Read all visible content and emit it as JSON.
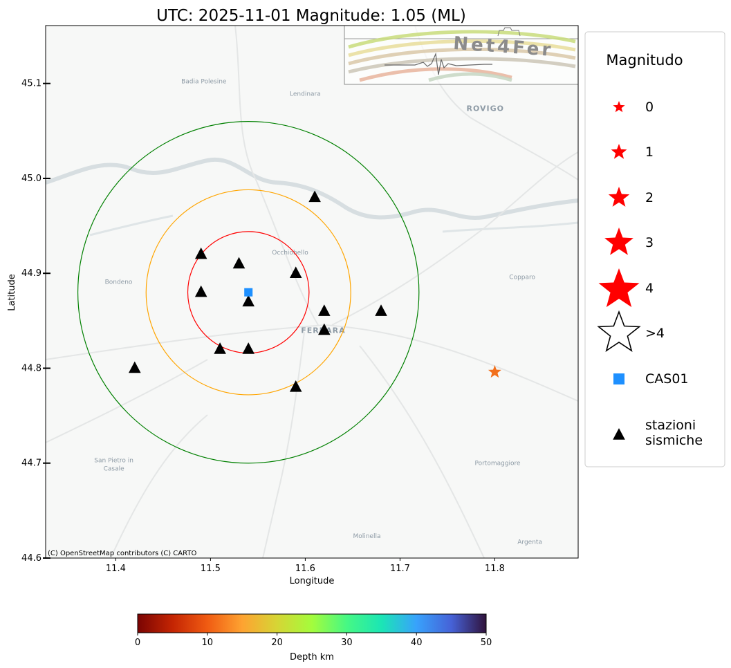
{
  "title": "UTC: 2025-11-01 Magnitude: 1.05 (ML)",
  "map": {
    "lon_range": [
      11.326,
      11.888
    ],
    "lat_range": [
      44.6,
      45.161
    ],
    "x_label": "Longitude",
    "y_label": "Latitude",
    "x_ticks": [
      {
        "value": 11.4,
        "label": "11.4"
      },
      {
        "value": 11.5,
        "label": "11.5"
      },
      {
        "value": 11.6,
        "label": "11.6"
      },
      {
        "value": 11.7,
        "label": "11.7"
      },
      {
        "value": 11.8,
        "label": "11.8"
      }
    ],
    "y_ticks": [
      {
        "value": 44.6,
        "label": "44.6"
      },
      {
        "value": 44.7,
        "label": "44.7"
      },
      {
        "value": 44.8,
        "label": "44.8"
      },
      {
        "value": 44.9,
        "label": "44.9"
      },
      {
        "value": 45.0,
        "label": "45.0"
      },
      {
        "value": 45.1,
        "label": "45.1"
      }
    ],
    "attribution": "(C) OpenStreetMap contributors (C) CARTO",
    "place_labels": [
      {
        "name": "Badia Polesine",
        "lon": 11.493,
        "lat": 45.1
      },
      {
        "name": "Lendinara",
        "lon": 11.6,
        "lat": 45.087
      },
      {
        "name": "ROVIGO",
        "lon": 11.79,
        "lat": 45.071
      },
      {
        "name": "Bondeno",
        "lon": 11.403,
        "lat": 44.889
      },
      {
        "name": "Occhiobello",
        "lon": 11.584,
        "lat": 44.92
      },
      {
        "name": "Copparo",
        "lon": 11.829,
        "lat": 44.894
      },
      {
        "name": "FERRARA",
        "lon": 11.619,
        "lat": 44.837
      },
      {
        "name": "San Pietro in",
        "lon": 11.398,
        "lat": 44.701
      },
      {
        "name": "Casale",
        "lon": 11.398,
        "lat": 44.692
      },
      {
        "name": "Portomaggiore",
        "lon": 11.803,
        "lat": 44.698
      },
      {
        "name": "Molinella",
        "lon": 11.665,
        "lat": 44.621
      },
      {
        "name": "Argenta",
        "lon": 11.837,
        "lat": 44.615
      }
    ],
    "range_circles": [
      {
        "lon": 11.54,
        "lat": 44.88,
        "radius_deg": 0.064,
        "color": "#ff0000"
      },
      {
        "lon": 11.54,
        "lat": 44.88,
        "radius_deg": 0.108,
        "color": "#ffa500"
      },
      {
        "lon": 11.54,
        "lat": 44.88,
        "radius_deg": 0.18,
        "color": "#008000"
      }
    ],
    "station_CAS01": {
      "name": "CAS01",
      "lon": 11.54,
      "lat": 44.88,
      "color": "#1e90ff"
    },
    "stations": [
      {
        "lon": 11.61,
        "lat": 44.98
      },
      {
        "lon": 11.49,
        "lat": 44.92
      },
      {
        "lon": 11.53,
        "lat": 44.91
      },
      {
        "lon": 11.59,
        "lat": 44.9
      },
      {
        "lon": 11.49,
        "lat": 44.88
      },
      {
        "lon": 11.54,
        "lat": 44.87
      },
      {
        "lon": 11.62,
        "lat": 44.86
      },
      {
        "lon": 11.68,
        "lat": 44.86
      },
      {
        "lon": 11.62,
        "lat": 44.84
      },
      {
        "lon": 11.51,
        "lat": 44.82
      },
      {
        "lon": 11.54,
        "lat": 44.82
      },
      {
        "lon": 11.42,
        "lat": 44.8
      },
      {
        "lon": 11.59,
        "lat": 44.78
      }
    ],
    "event": {
      "lon": 11.8,
      "lat": 44.796,
      "magnitude": 1.05,
      "color": "#f2701c"
    },
    "logo_text": "Net4Fer"
  },
  "legend": {
    "title": "Magnitudo",
    "items": [
      {
        "label": "0",
        "kind": "star"
      },
      {
        "label": "1",
        "kind": "star"
      },
      {
        "label": "2",
        "kind": "star"
      },
      {
        "label": "3",
        "kind": "star"
      },
      {
        "label": "4",
        "kind": "star"
      },
      {
        "label": ">4",
        "kind": "star-outline"
      },
      {
        "label": "CAS01",
        "kind": "square"
      },
      {
        "label": "stazioni",
        "label2": "sismiche",
        "kind": "triangle"
      }
    ]
  },
  "colorbar": {
    "label": "Depth km",
    "min": 0,
    "max": 50,
    "ticks": [
      "0",
      "10",
      "20",
      "30",
      "40",
      "50"
    ]
  },
  "colors": {
    "marker_red": "#ff0000",
    "station_black": "#000000",
    "frame": "#000000"
  }
}
